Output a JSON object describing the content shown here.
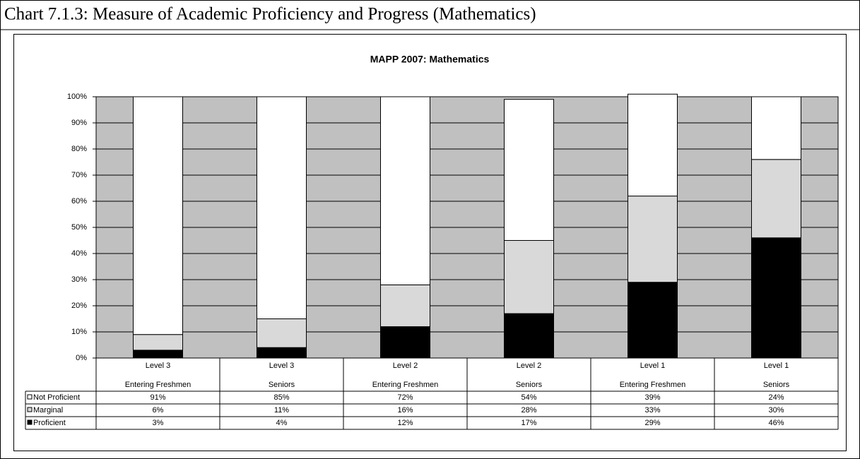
{
  "caption": "Chart 7.1.3: Measure of Academic Proficiency and Progress (Mathematics)",
  "chart_data": {
    "type": "stacked_bar",
    "title": "MAPP 2007: Mathematics",
    "categories": [
      [
        "Level 3",
        "Entering Freshmen"
      ],
      [
        "Level 3",
        "Seniors"
      ],
      [
        "Level 2",
        "Entering Freshmen"
      ],
      [
        "Level 2",
        "Seniors"
      ],
      [
        "Level 1",
        "Entering Freshmen"
      ],
      [
        "Level 1",
        "Seniors"
      ]
    ],
    "series": [
      {
        "name": "Not Proficient",
        "color": "#ffffff",
        "values": [
          91,
          85,
          72,
          54,
          39,
          24
        ],
        "value_labels": [
          "91%",
          "85%",
          "72%",
          "54%",
          "39%",
          "24%"
        ]
      },
      {
        "name": "Marginal",
        "color": "#d9d9d9",
        "values": [
          6,
          11,
          16,
          28,
          33,
          30
        ],
        "value_labels": [
          "6%",
          "11%",
          "16%",
          "28%",
          "33%",
          "30%"
        ]
      },
      {
        "name": "Proficient",
        "color": "#000000",
        "values": [
          3,
          4,
          12,
          17,
          29,
          46
        ],
        "value_labels": [
          "3%",
          "4%",
          "12%",
          "17%",
          "29%",
          "46%"
        ]
      }
    ],
    "ylim": [
      0,
      100
    ],
    "yticks": [
      {
        "value": 0,
        "label": "0%"
      },
      {
        "value": 10,
        "label": "10%"
      },
      {
        "value": 20,
        "label": "20%"
      },
      {
        "value": 30,
        "label": "30%"
      },
      {
        "value": 40,
        "label": "40%"
      },
      {
        "value": 50,
        "label": "50%"
      },
      {
        "value": 60,
        "label": "60%"
      },
      {
        "value": 70,
        "label": "70%"
      },
      {
        "value": 80,
        "label": "80%"
      },
      {
        "value": 90,
        "label": "90%"
      },
      {
        "value": 100,
        "label": "100%"
      }
    ],
    "grid": true,
    "plot_background": "#c0c0c0"
  }
}
